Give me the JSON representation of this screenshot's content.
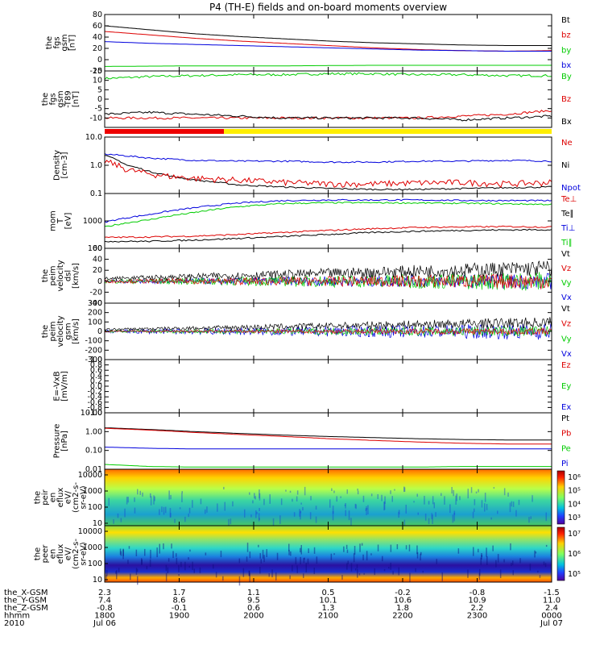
{
  "title": "P4 (TH-E) fields and on-board moments overview",
  "chart_data": [
    {
      "type": "line",
      "ylabel": [
        "the",
        "fgs",
        "gsm",
        "[nT]"
      ],
      "ylim": [
        -20,
        80
      ],
      "yticks": [
        "80",
        "60",
        "40",
        "20",
        "0",
        "-20"
      ],
      "legend": [
        {
          "name": "Bt",
          "color": "#000000"
        },
        {
          "name": "bz",
          "color": "#dd0000"
        },
        {
          "name": "by",
          "color": "#00cc00"
        },
        {
          "name": "bx",
          "color": "#0000dd"
        }
      ],
      "series": [
        {
          "name": "Bt",
          "color": "#000000",
          "x": [
            0,
            0.1,
            0.2,
            0.3,
            0.4,
            0.5,
            0.6,
            0.7,
            0.8,
            0.9,
            1.0
          ],
          "values": [
            60,
            53,
            46,
            41,
            37,
            33,
            30,
            28,
            26,
            25,
            25
          ]
        },
        {
          "name": "bz",
          "color": "#dd0000",
          "x": [
            0,
            0.1,
            0.2,
            0.3,
            0.4,
            0.5,
            0.6,
            0.7,
            0.8,
            0.9,
            1.0
          ],
          "values": [
            50,
            44,
            38,
            33,
            29,
            25,
            21,
            18,
            16,
            15,
            16
          ]
        },
        {
          "name": "by",
          "color": "#00cc00",
          "x": [
            0,
            0.2,
            0.4,
            0.6,
            0.8,
            1.0
          ],
          "values": [
            -12,
            -11,
            -11,
            -10,
            -10,
            -10
          ]
        },
        {
          "name": "bx",
          "color": "#0000dd",
          "x": [
            0,
            0.1,
            0.2,
            0.3,
            0.4,
            0.5,
            0.6,
            0.7,
            0.8,
            0.9,
            1.0
          ],
          "values": [
            32,
            29,
            27,
            25,
            23,
            21,
            19,
            17,
            16,
            15,
            15
          ]
        }
      ]
    },
    {
      "type": "line",
      "ylabel": [
        "the",
        "fgs",
        "gsm",
        "-T89",
        "[nT]"
      ],
      "ylim": [
        -15,
        15
      ],
      "yticks": [
        "15",
        "10",
        "5",
        "0",
        "-5",
        "-10"
      ],
      "legend": [
        {
          "name": "By",
          "color": "#00cc00"
        },
        {
          "name": "Bz",
          "color": "#dd0000"
        },
        {
          "name": "Bx",
          "color": "#000000"
        }
      ],
      "series": [
        {
          "name": "By",
          "color": "#00cc00",
          "x": [
            0,
            0.1,
            0.2,
            0.3,
            0.4,
            0.5,
            0.6,
            0.7,
            0.8,
            0.9,
            1.0
          ],
          "values": [
            11,
            12,
            12.5,
            13,
            13,
            13.5,
            13.5,
            13,
            13,
            12.5,
            12.5
          ]
        },
        {
          "name": "Bz",
          "color": "#dd0000",
          "x": [
            0,
            0.1,
            0.2,
            0.3,
            0.4,
            0.5,
            0.6,
            0.7,
            0.8,
            0.9,
            1.0
          ],
          "values": [
            -10,
            -10,
            -10,
            -10,
            -10,
            -10,
            -10,
            -10,
            -9,
            -8,
            -6
          ]
        },
        {
          "name": "Bx",
          "color": "#000000",
          "x": [
            0,
            0.1,
            0.2,
            0.3,
            0.4,
            0.5,
            0.6,
            0.7,
            0.8,
            0.9,
            1.0
          ],
          "values": [
            -8,
            -7,
            -8,
            -9,
            -10,
            -10,
            -10,
            -10,
            -11,
            -10,
            -9
          ]
        }
      ]
    },
    {
      "type": "line",
      "scale": "log",
      "ylabel": [
        "Density",
        "[cm-3]"
      ],
      "ylim": [
        0.1,
        10
      ],
      "yticks": [
        "10.0",
        "1.0",
        "0.1"
      ],
      "legend": [
        {
          "name": "Ne",
          "color": "#dd0000"
        },
        {
          "name": "Ni",
          "color": "#000000"
        },
        {
          "name": "Npot",
          "color": "#0000dd"
        }
      ],
      "series": [
        {
          "name": "Npot",
          "color": "#0000dd",
          "x": [
            0,
            0.1,
            0.2,
            0.3,
            0.4,
            0.5,
            0.6,
            0.7,
            0.8,
            0.9,
            1.0
          ],
          "values": [
            2.5,
            1.8,
            1.5,
            1.4,
            1.4,
            1.3,
            1.3,
            1.4,
            1.4,
            1.5,
            1.4
          ]
        },
        {
          "name": "Ni",
          "color": "#000000",
          "x": [
            0,
            0.05,
            0.1,
            0.15,
            0.2,
            0.3,
            0.4,
            0.5,
            0.6,
            0.7,
            0.8,
            0.9,
            1.0
          ],
          "values": [
            2.2,
            1.0,
            0.6,
            0.4,
            0.3,
            0.2,
            0.17,
            0.15,
            0.14,
            0.14,
            0.15,
            0.16,
            0.17
          ]
        },
        {
          "name": "Ne",
          "color": "#dd0000",
          "x": [
            0,
            0.05,
            0.1,
            0.15,
            0.2,
            0.3,
            0.4,
            0.5,
            0.6,
            0.7,
            0.8,
            0.9,
            1.0
          ],
          "values": [
            1.4,
            0.7,
            0.5,
            0.4,
            0.35,
            0.3,
            0.25,
            0.22,
            0.22,
            0.24,
            0.25,
            0.22,
            0.25
          ]
        }
      ]
    },
    {
      "type": "line",
      "scale": "log",
      "ylabel": [
        "mom",
        "T",
        "[eV]"
      ],
      "ylim": [
        100,
        10000
      ],
      "yticks": [
        "1000",
        "100"
      ],
      "legend": [
        {
          "name": "Te⊥",
          "color": "#dd0000"
        },
        {
          "name": "Te∥",
          "color": "#000000"
        },
        {
          "name": "Ti⊥",
          "color": "#0000dd"
        },
        {
          "name": "Ti∥",
          "color": "#00cc00"
        }
      ],
      "series": [
        {
          "name": "Ti⊥",
          "color": "#0000dd",
          "x": [
            0,
            0.1,
            0.2,
            0.3,
            0.4,
            0.5,
            0.6,
            0.7,
            0.8,
            0.9,
            1.0
          ],
          "values": [
            900,
            1700,
            3000,
            4500,
            5500,
            5800,
            5800,
            5800,
            5600,
            5500,
            5500
          ]
        },
        {
          "name": "Ti∥",
          "color": "#00cc00",
          "x": [
            0,
            0.1,
            0.2,
            0.3,
            0.4,
            0.5,
            0.6,
            0.7,
            0.8,
            0.9,
            1.0
          ],
          "values": [
            600,
            1100,
            2000,
            3300,
            4300,
            4600,
            4600,
            4500,
            4400,
            4200,
            4000
          ]
        },
        {
          "name": "Te⊥",
          "color": "#dd0000",
          "x": [
            0,
            0.1,
            0.2,
            0.3,
            0.4,
            0.5,
            0.6,
            0.7,
            0.8,
            0.9,
            1.0
          ],
          "values": [
            250,
            260,
            280,
            320,
            380,
            450,
            520,
            580,
            600,
            620,
            600
          ]
        },
        {
          "name": "Te∥",
          "color": "#000000",
          "x": [
            0,
            0.1,
            0.2,
            0.3,
            0.4,
            0.5,
            0.6,
            0.7,
            0.8,
            0.9,
            1.0
          ],
          "values": [
            180,
            180,
            200,
            230,
            270,
            320,
            380,
            420,
            450,
            470,
            480
          ]
        }
      ]
    },
    {
      "type": "line",
      "ylabel": [
        "the",
        "peim",
        "velocity",
        "dsl",
        "[km/s]"
      ],
      "ylim": [
        -40,
        60
      ],
      "yticks": [
        "60",
        "40",
        "20",
        "0",
        "-20",
        "-40"
      ],
      "legend": [
        {
          "name": "Vt",
          "color": "#000000"
        },
        {
          "name": "Vz",
          "color": "#dd0000"
        },
        {
          "name": "Vy",
          "color": "#00cc00"
        },
        {
          "name": "Vx",
          "color": "#0000dd"
        }
      ]
    },
    {
      "type": "line",
      "ylabel": [
        "the",
        "peim",
        "velocity",
        "gsm",
        "[km/s]"
      ],
      "ylim": [
        -300,
        300
      ],
      "yticks": [
        "300",
        "200",
        "100",
        "0",
        "-100",
        "-200",
        "-300"
      ],
      "legend": [
        {
          "name": "Vt",
          "color": "#000000"
        },
        {
          "name": "Vz",
          "color": "#dd0000"
        },
        {
          "name": "Vy",
          "color": "#00cc00"
        },
        {
          "name": "Vx",
          "color": "#0000dd"
        }
      ]
    },
    {
      "type": "line",
      "ylabel": [
        "E=-VxB",
        "[mV/m]"
      ],
      "ylim": [
        -1.0,
        1.0
      ],
      "yticks": [
        "1.0",
        "0.8",
        "0.6",
        "0.4",
        "0.2",
        "0.0",
        "-0.2",
        "-0.4",
        "-0.6",
        "-0.8",
        "-1.0"
      ],
      "legend": [
        {
          "name": "Ez",
          "color": "#dd0000"
        },
        {
          "name": "Ey",
          "color": "#00cc00"
        },
        {
          "name": "Ex",
          "color": "#0000dd"
        }
      ],
      "series": []
    },
    {
      "type": "line",
      "scale": "log",
      "ylabel": [
        "Pressure",
        "[nPa]"
      ],
      "ylim": [
        0.01,
        10
      ],
      "yticks": [
        "10.00",
        "1.00",
        "0.10",
        "0.01"
      ],
      "legend": [
        {
          "name": "Pt",
          "color": "#000000"
        },
        {
          "name": "Pb",
          "color": "#dd0000"
        },
        {
          "name": "Pe",
          "color": "#00cc00"
        },
        {
          "name": "Pi",
          "color": "#0000dd"
        }
      ],
      "series": [
        {
          "name": "Pt",
          "color": "#000000",
          "x": [
            0,
            0.1,
            0.2,
            0.3,
            0.4,
            0.5,
            0.6,
            0.7,
            0.8,
            0.9,
            1.0
          ],
          "values": [
            1.6,
            1.3,
            1.0,
            0.8,
            0.65,
            0.55,
            0.48,
            0.42,
            0.38,
            0.36,
            0.36
          ]
        },
        {
          "name": "Pb",
          "color": "#dd0000",
          "x": [
            0,
            0.1,
            0.2,
            0.3,
            0.4,
            0.5,
            0.6,
            0.7,
            0.8,
            0.9,
            1.0
          ],
          "values": [
            1.5,
            1.2,
            0.9,
            0.7,
            0.55,
            0.42,
            0.34,
            0.28,
            0.24,
            0.22,
            0.22
          ]
        },
        {
          "name": "Pi",
          "color": "#0000dd",
          "x": [
            0,
            0.1,
            0.2,
            0.3,
            0.4,
            0.5,
            0.6,
            0.7,
            0.8,
            0.9,
            1.0
          ],
          "values": [
            0.15,
            0.13,
            0.12,
            0.12,
            0.12,
            0.12,
            0.12,
            0.12,
            0.12,
            0.12,
            0.12
          ]
        },
        {
          "name": "Pe",
          "color": "#00cc00",
          "x": [
            0,
            0.1,
            0.2,
            0.3,
            0.4,
            0.5,
            0.6,
            0.7,
            0.8,
            0.9,
            1.0
          ],
          "values": [
            0.018,
            0.014,
            0.013,
            0.013,
            0.013,
            0.013,
            0.013,
            0.013,
            0.014,
            0.014,
            0.014
          ]
        }
      ]
    },
    {
      "type": "heatmap",
      "ylabel": [
        "the",
        "peir",
        "en",
        "eflux",
        "eV/",
        "(cm2-s-",
        "sr-eV)"
      ],
      "yticks": [
        "10000",
        "1000",
        "100",
        "10"
      ],
      "colorbar": [
        "10⁶",
        "10⁵",
        "10⁴",
        "10³"
      ]
    },
    {
      "type": "heatmap",
      "ylabel": [
        "the",
        "peer",
        "en",
        "eflux",
        "eV/",
        "(cm2-s-",
        "sr-eV)"
      ],
      "yticks": [
        "10000",
        "1000",
        "100",
        "10"
      ],
      "colorbar": [
        "10⁷",
        "10⁶",
        "10⁵"
      ]
    }
  ],
  "footer": {
    "rows": [
      {
        "label": "the_X-GSM",
        "values": [
          "2.3",
          "1.7",
          "1.1",
          "0.5",
          "-0.2",
          "-0.8",
          "-1.5"
        ]
      },
      {
        "label": "the_Y-GSM",
        "values": [
          "7.4",
          "8.6",
          "9.5",
          "10.1",
          "10.6",
          "10.9",
          "11.0"
        ]
      },
      {
        "label": "the_Z-GSM",
        "values": [
          "-0.8",
          "-0.1",
          "0.6",
          "1.3",
          "1.8",
          "2.2",
          "2.4"
        ]
      },
      {
        "label": "hhmm",
        "values": [
          "1800",
          "1900",
          "2000",
          "2100",
          "2200",
          "2300",
          "0000"
        ]
      },
      {
        "label": "2010",
        "values": [
          "Jul 06",
          "",
          "",
          "",
          "",
          "",
          "Jul 07"
        ]
      }
    ]
  }
}
